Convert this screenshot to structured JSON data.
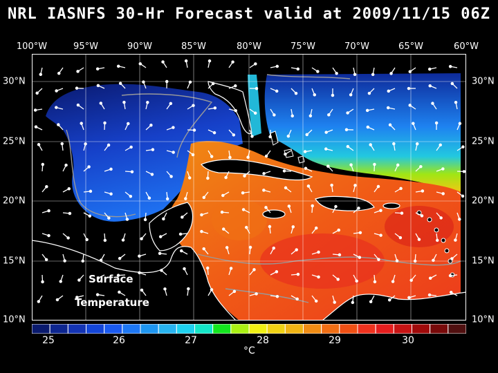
{
  "title": "NRL IASNFS  30-Hr Forecast valid at 2009/11/15 06Z",
  "lon_labels": [
    "100°W",
    "95°W",
    "90°W",
    "85°W",
    "80°W",
    "75°W",
    "70°W",
    "65°W",
    "60°W"
  ],
  "lat_labels": [
    "30°N",
    "25°N",
    "20°N",
    "15°N",
    "10°N"
  ],
  "map_label_line1": "Surface",
  "map_label_line2": "Temperature",
  "colorbar": {
    "unit": "°C",
    "labels": [
      "25",
      "26",
      "27",
      "28",
      "29",
      "30"
    ],
    "colors": [
      "#0a1a6e",
      "#0d2690",
      "#1434b4",
      "#1446d8",
      "#1a5af0",
      "#1e78f4",
      "#1e96f0",
      "#28b4f0",
      "#1ed2f0",
      "#14e6c8",
      "#14e61e",
      "#aaf014",
      "#f0f014",
      "#f0d214",
      "#f0b414",
      "#f08c14",
      "#f06e14",
      "#f05014",
      "#f0321e",
      "#e61e1e",
      "#c81414",
      "#a00a0a",
      "#780a0a",
      "#501010"
    ]
  },
  "colors": {
    "land": "#000000",
    "background": "#000000",
    "coast": "#ffffff",
    "bathymetry": "#999999",
    "grid": "#ffffff"
  }
}
